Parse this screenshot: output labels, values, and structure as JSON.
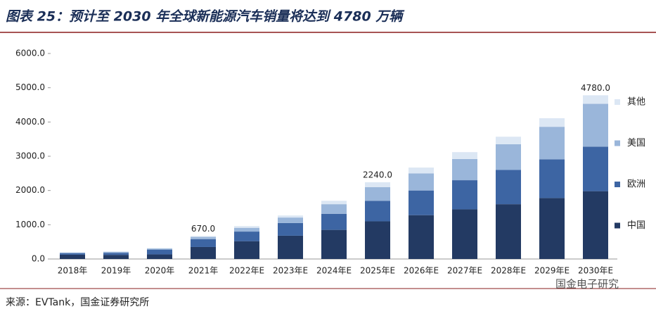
{
  "chart_data": {
    "type": "stacked_bar",
    "title": "图表 25：预计至 2030 年全球新能源汽车销量将达到 4780 万辆",
    "source": "来源：EVTank，国金证券研究所",
    "watermark": "国金电子研究",
    "categories": [
      "2018年",
      "2019年",
      "2020年",
      "2021年",
      "2022年E",
      "2023年E",
      "2024年E",
      "2025年E",
      "2026年E",
      "2027年E",
      "2028年E",
      "2029年E",
      "2030年E"
    ],
    "series": [
      {
        "name": "中国",
        "color": "#233a63",
        "values": [
          125,
          120,
          135,
          350,
          520,
          680,
          850,
          1100,
          1280,
          1450,
          1600,
          1780,
          1980
        ]
      },
      {
        "name": "欧洲",
        "color": "#3d65a3",
        "values": [
          40,
          60,
          140,
          230,
          280,
          370,
          470,
          600,
          720,
          850,
          1000,
          1130,
          1300
        ]
      },
      {
        "name": "美国",
        "color": "#9ab6da",
        "values": [
          25,
          30,
          30,
          65,
          110,
          160,
          280,
          400,
          500,
          620,
          750,
          950,
          1250
        ]
      },
      {
        "name": "其他",
        "color": "#dce7f4",
        "values": [
          10,
          10,
          15,
          25,
          50,
          60,
          100,
          140,
          170,
          200,
          220,
          250,
          250
        ]
      }
    ],
    "annotations": [
      {
        "category": "2021年",
        "value": 670,
        "label": "670.0"
      },
      {
        "category": "2025年E",
        "value": 2240,
        "label": "2240.0"
      },
      {
        "category": "2030年E",
        "value": 4780,
        "label": "4780.0"
      }
    ],
    "ylim": [
      0,
      6000
    ],
    "yticks": [
      {
        "value": 0,
        "label": "0.0"
      },
      {
        "value": 1000,
        "label": "1000.0"
      },
      {
        "value": 2000,
        "label": "2000.0"
      },
      {
        "value": 3000,
        "label": "3000.0"
      },
      {
        "value": 4000,
        "label": "4000.0"
      },
      {
        "value": 5000,
        "label": "5000.0"
      },
      {
        "value": 6000,
        "label": "6000.0"
      }
    ],
    "grid": false,
    "legend": "right"
  }
}
